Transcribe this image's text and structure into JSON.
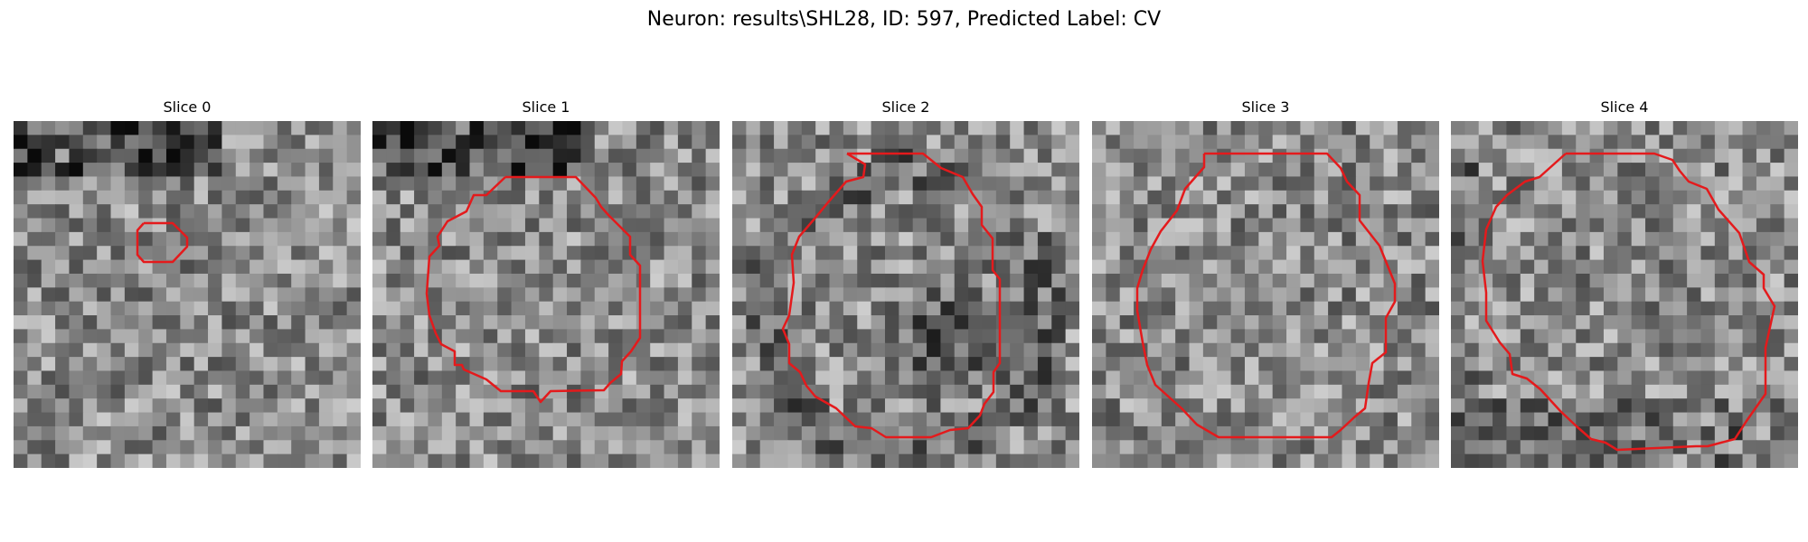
{
  "figure": {
    "title": "Neuron: results\\SHL28, ID: 597, Predicted Label: CV"
  },
  "style": {
    "contour_color": "#e41a1c",
    "colormap": "gray"
  },
  "panels": [
    {
      "title": "Slice 0",
      "icon": "grayscale-image",
      "seed": 101,
      "dark_blob": "top-band"
    },
    {
      "title": "Slice 1",
      "icon": "grayscale-image",
      "seed": 202,
      "dark_blob": "top-band"
    },
    {
      "title": "Slice 2",
      "icon": "grayscale-image",
      "seed": 303,
      "dark_blob": "center-lower"
    },
    {
      "title": "Slice 3",
      "icon": "grayscale-image",
      "seed": 404,
      "dark_blob": "none"
    },
    {
      "title": "Slice 4",
      "icon": "grayscale-image",
      "seed": 505,
      "dark_blob": "left-edge"
    }
  ]
}
